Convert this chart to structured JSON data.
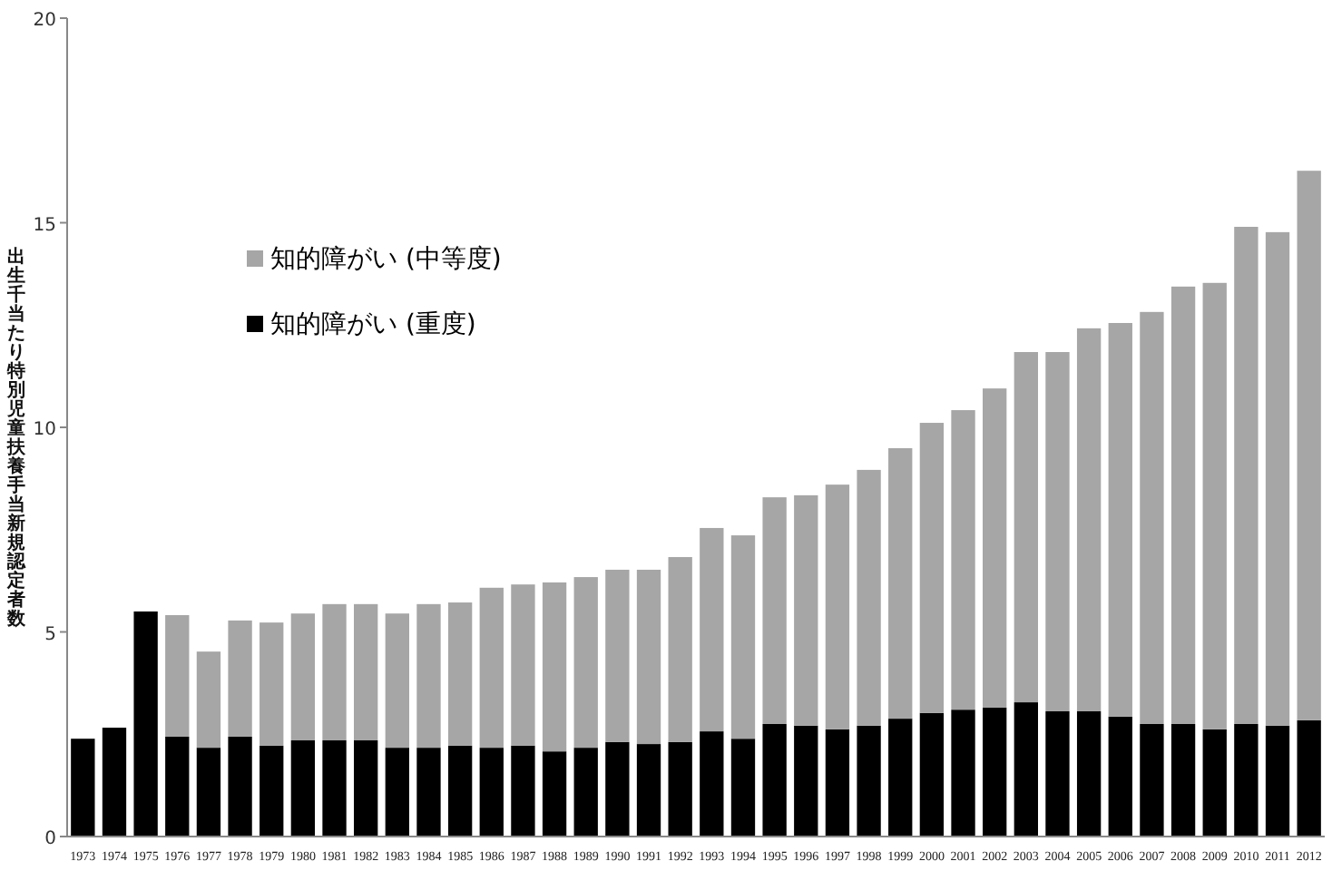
{
  "chart_data": {
    "type": "bar",
    "stacked": true,
    "ylabel": "出生千当たり特別児童扶養手当新規認定者数",
    "categories": [
      "1973",
      "1974",
      "1975",
      "1976",
      "1977",
      "1978",
      "1979",
      "1980",
      "1981",
      "1982",
      "1983",
      "1984",
      "1985",
      "1986",
      "1987",
      "1988",
      "1989",
      "1990",
      "1991",
      "1992",
      "1993",
      "1994",
      "1995",
      "1996",
      "1997",
      "1998",
      "1999",
      "2000",
      "2001",
      "2002",
      "2003",
      "2004",
      "2005",
      "2006",
      "2007",
      "2008",
      "2009",
      "2010",
      "2011",
      "2012"
    ],
    "series": [
      {
        "name": "知的障がい (重度)",
        "color": "#000000",
        "values": [
          2.39,
          2.66,
          5.5,
          2.44,
          2.17,
          2.44,
          2.22,
          2.35,
          2.35,
          2.35,
          2.17,
          2.17,
          2.22,
          2.17,
          2.22,
          2.08,
          2.17,
          2.31,
          2.26,
          2.31,
          2.57,
          2.39,
          2.75,
          2.71,
          2.62,
          2.71,
          2.88,
          3.02,
          3.1,
          3.15,
          3.28,
          3.06,
          3.06,
          2.93,
          2.75,
          2.75,
          2.62,
          2.75,
          2.71,
          2.84
        ]
      },
      {
        "name": "知的障がい (中等度)",
        "color": "#a6a6a6",
        "values": [
          null,
          null,
          null,
          2.97,
          2.35,
          2.84,
          3.01,
          3.1,
          3.33,
          3.33,
          3.28,
          3.51,
          3.5,
          3.91,
          3.94,
          4.13,
          4.17,
          4.21,
          4.26,
          4.52,
          4.97,
          4.97,
          5.54,
          5.63,
          5.98,
          6.25,
          6.61,
          7.09,
          7.32,
          7.8,
          8.56,
          8.78,
          9.36,
          9.62,
          10.07,
          10.69,
          10.91,
          12.15,
          12.06,
          13.43
        ]
      }
    ],
    "ylim": [
      0,
      20
    ],
    "yticks": [
      0,
      5,
      10,
      15,
      20
    ],
    "grid": false,
    "legend": "left"
  }
}
